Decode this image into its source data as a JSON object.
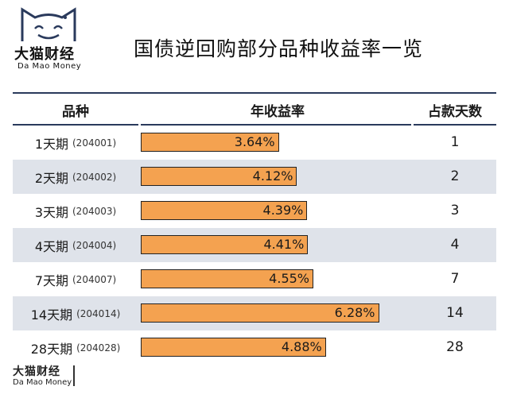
{
  "brand": {
    "name_cn": "大猫财经",
    "name_en": "Da Mao Money",
    "icon": "cat-face-logo-icon"
  },
  "title": "国债逆回购部分品种收益率一览",
  "headers": {
    "variety": "品种",
    "rate": "年收益率",
    "days": "占款天数"
  },
  "colors": {
    "bar": "#f4a250",
    "row_shade": "#dfe3ea",
    "rule": "#2a3a5c"
  },
  "chart_data": {
    "type": "bar",
    "title": "国债逆回购部分品种收益率一览",
    "categories": [
      "1天期",
      "2天期",
      "3天期",
      "4天期",
      "7天期",
      "14天期",
      "28天期"
    ],
    "codes": [
      "(204001)",
      "(204002)",
      "(204003)",
      "(204004)",
      "(204007)",
      "(204014)",
      "(204028)"
    ],
    "values": [
      3.64,
      4.12,
      4.39,
      4.41,
      4.55,
      6.28,
      4.88
    ],
    "value_labels": [
      "3.64%",
      "4.12%",
      "4.39%",
      "4.41%",
      "4.55%",
      "6.28%",
      "4.88%"
    ],
    "days": [
      "1",
      "2",
      "3",
      "4",
      "7",
      "14",
      "28"
    ],
    "ylim": [
      0,
      6.5
    ]
  }
}
